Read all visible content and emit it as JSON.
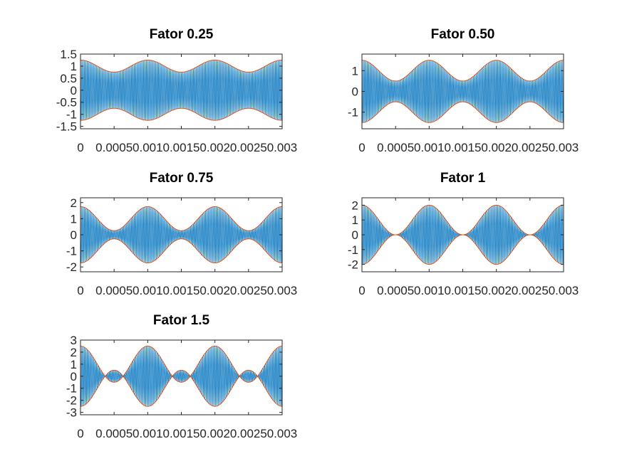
{
  "chart_data": [
    {
      "type": "line",
      "title": "Fator 0.25",
      "modulation_index": 0.25,
      "xlim": [
        0,
        0.003
      ],
      "ylim": [
        -1.6,
        1.5
      ],
      "xticks": [
        0,
        0.0005,
        0.001,
        0.0015,
        0.002,
        0.0025,
        0.003
      ],
      "xtick_labels": [
        "0",
        "0.0005",
        "0.001",
        "0.0015",
        "0.002",
        "0.0025",
        "0.003"
      ],
      "yticks": [
        1.5,
        1,
        0.5,
        0,
        -0.5,
        -1,
        -1.5
      ],
      "ytick_labels": [
        "1.5",
        "1",
        "0.5",
        "0",
        "-0.5",
        "-1",
        "-1.5"
      ],
      "envelope_max": 1.25,
      "envelope_min": 0.75,
      "envelope_peaks_x": [
        0,
        0.001,
        0.002,
        0.003
      ],
      "colors": {
        "signal": "#0072bd",
        "envelope": "#d95319"
      }
    },
    {
      "type": "line",
      "title": "Fator 0.50",
      "modulation_index": 0.5,
      "xlim": [
        0,
        0.003
      ],
      "ylim": [
        -1.8,
        1.8
      ],
      "xticks": [
        0,
        0.0005,
        0.001,
        0.0015,
        0.002,
        0.0025,
        0.003
      ],
      "xtick_labels": [
        "0",
        "0.0005",
        "0.001",
        "0.0015",
        "0.002",
        "0.0025",
        "0.003"
      ],
      "yticks": [
        1,
        0,
        -1
      ],
      "ytick_labels": [
        "1",
        "0",
        "-1"
      ],
      "envelope_max": 1.5,
      "envelope_min": 0.5,
      "envelope_peaks_x": [
        0,
        0.001,
        0.002,
        0.003
      ],
      "colors": {
        "signal": "#0072bd",
        "envelope": "#d95319"
      }
    },
    {
      "type": "line",
      "title": "Fator 0.75",
      "modulation_index": 0.75,
      "xlim": [
        0,
        0.003
      ],
      "ylim": [
        -2.3,
        2.3
      ],
      "xticks": [
        0,
        0.0005,
        0.001,
        0.0015,
        0.002,
        0.0025,
        0.003
      ],
      "xtick_labels": [
        "0",
        "0.0005",
        "0.001",
        "0.0015",
        "0.002",
        "0.0025",
        "0.003"
      ],
      "yticks": [
        2,
        1,
        0,
        -1,
        -2
      ],
      "ytick_labels": [
        "2",
        "1",
        "0",
        "-1",
        "-2"
      ],
      "envelope_max": 1.75,
      "envelope_min": 0.25,
      "envelope_peaks_x": [
        0,
        0.001,
        0.002,
        0.003
      ],
      "colors": {
        "signal": "#0072bd",
        "envelope": "#d95319"
      }
    },
    {
      "type": "line",
      "title": "Fator 1",
      "modulation_index": 1,
      "xlim": [
        0,
        0.003
      ],
      "ylim": [
        -2.5,
        2.5
      ],
      "xticks": [
        0,
        0.0005,
        0.001,
        0.0015,
        0.002,
        0.0025,
        0.003
      ],
      "xtick_labels": [
        "0",
        "0.0005",
        "0.001",
        "0.0015",
        "0.002",
        "0.0025",
        "0.003"
      ],
      "yticks": [
        2,
        1,
        0,
        -1,
        -2
      ],
      "ytick_labels": [
        "2",
        "1",
        "0",
        "-1",
        "-2"
      ],
      "envelope_max": 2,
      "envelope_min": 0,
      "envelope_peaks_x": [
        0,
        0.001,
        0.002,
        0.003
      ],
      "colors": {
        "signal": "#0072bd",
        "envelope": "#d95319"
      }
    },
    {
      "type": "line",
      "title": "Fator 1.5",
      "modulation_index": 1.5,
      "xlim": [
        0,
        0.003
      ],
      "ylim": [
        -3.2,
        3.0
      ],
      "xticks": [
        0,
        0.0005,
        0.001,
        0.0015,
        0.002,
        0.0025,
        0.003
      ],
      "xtick_labels": [
        "0",
        "0.0005",
        "0.001",
        "0.0015",
        "0.002",
        "0.0025",
        "0.003"
      ],
      "yticks": [
        3,
        2,
        1,
        0,
        -1,
        -2,
        -3
      ],
      "ytick_labels": [
        "3",
        "2",
        "1",
        "0",
        "-1",
        "-2",
        "-3"
      ],
      "envelope_max": 2.5,
      "envelope_min": 0.5,
      "envelope_peaks_x": [
        0,
        0.001,
        0.002,
        0.003
      ],
      "colors": {
        "signal": "#0072bd",
        "envelope": "#d95319"
      }
    }
  ]
}
